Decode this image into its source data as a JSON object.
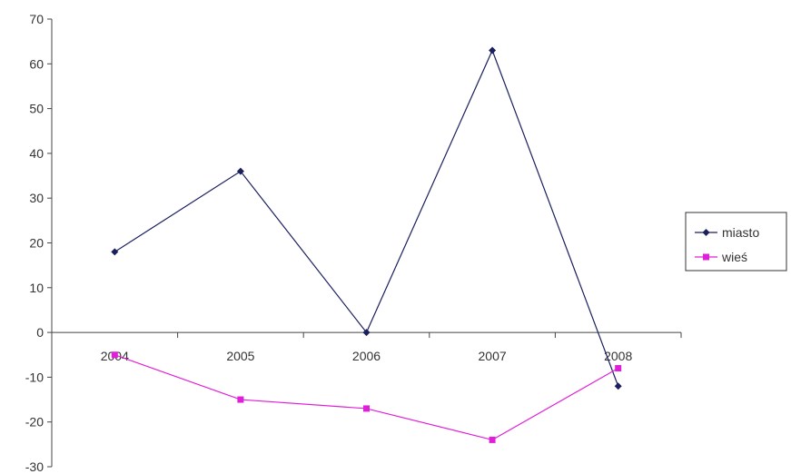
{
  "chart_data": {
    "type": "line",
    "title": "",
    "xlabel": "",
    "ylabel": "",
    "categories": [
      "2004",
      "2005",
      "2006",
      "2007",
      "2008"
    ],
    "ylim": [
      -30,
      70
    ],
    "yticks": [
      70,
      60,
      50,
      40,
      30,
      20,
      10,
      0,
      -10,
      -20,
      -30
    ],
    "grid": false,
    "legend": "right",
    "series": [
      {
        "name": "miasto",
        "values": [
          18,
          36,
          0,
          63,
          -12
        ],
        "color": "#1a1f5e",
        "marker": "diamond"
      },
      {
        "name": "wieś",
        "values": [
          -5,
          -15,
          -17,
          -24,
          -8
        ],
        "color": "#e020d8",
        "marker": "square"
      }
    ]
  }
}
